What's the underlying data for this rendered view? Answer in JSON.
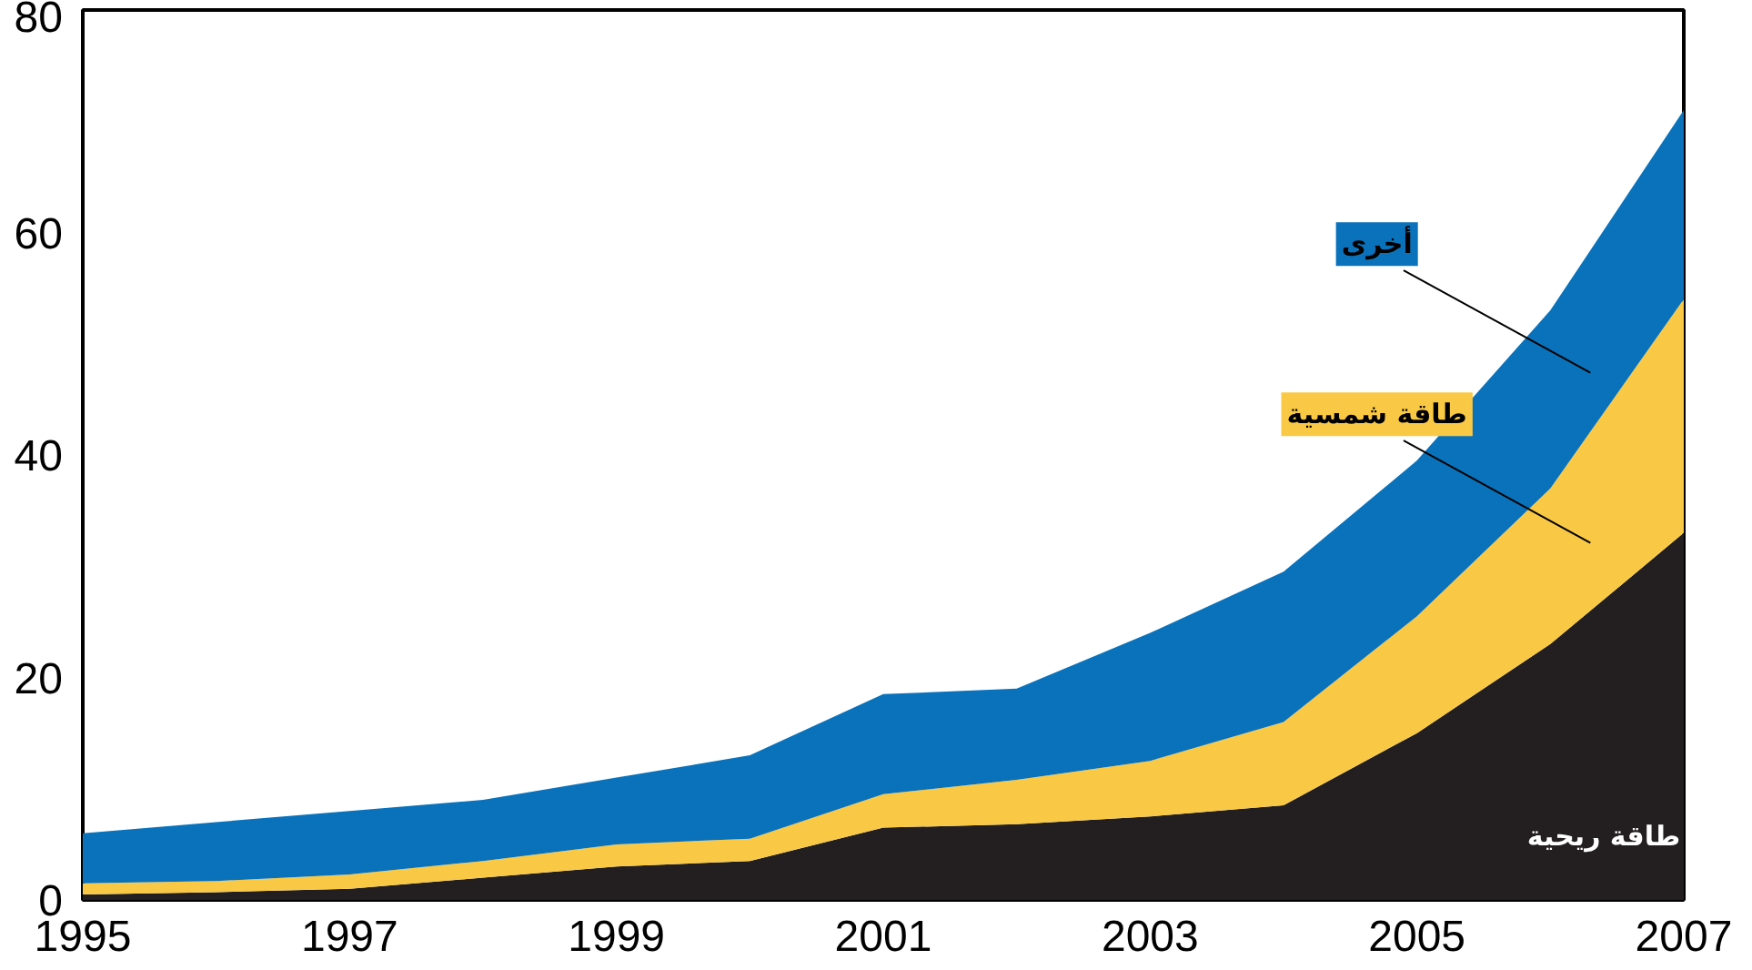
{
  "chart_data": {
    "type": "area",
    "stacked": true,
    "x": [
      1995,
      1996,
      1997,
      1998,
      1999,
      2000,
      2001,
      2002,
      2003,
      2004,
      2005,
      2006,
      2007
    ],
    "series": [
      {
        "name": "طاقة ريحية",
        "color": "#231f20",
        "values": [
          0.5,
          0.7,
          1,
          2,
          3,
          3.5,
          6.5,
          6.8,
          7.5,
          8.5,
          15,
          23,
          33
        ]
      },
      {
        "name": "طاقة شمسية",
        "color": "#f9c945",
        "values": [
          1,
          1,
          1.3,
          1.5,
          2,
          2,
          3,
          4,
          5,
          7.5,
          10.5,
          14,
          21
        ]
      },
      {
        "name": "أخرى",
        "color": "#0a72ba",
        "values": [
          4.5,
          5.3,
          5.7,
          5.5,
          6,
          7.5,
          9,
          8.2,
          11.5,
          13.5,
          14,
          16,
          17
        ]
      }
    ],
    "xlim": [
      1995,
      2007
    ],
    "ylim": [
      0,
      80
    ],
    "xticks": [
      1995,
      1997,
      1999,
      2001,
      2003,
      2005,
      2007
    ],
    "yticks": [
      0,
      20,
      40,
      60,
      80
    ],
    "grid": false,
    "legend": false
  }
}
